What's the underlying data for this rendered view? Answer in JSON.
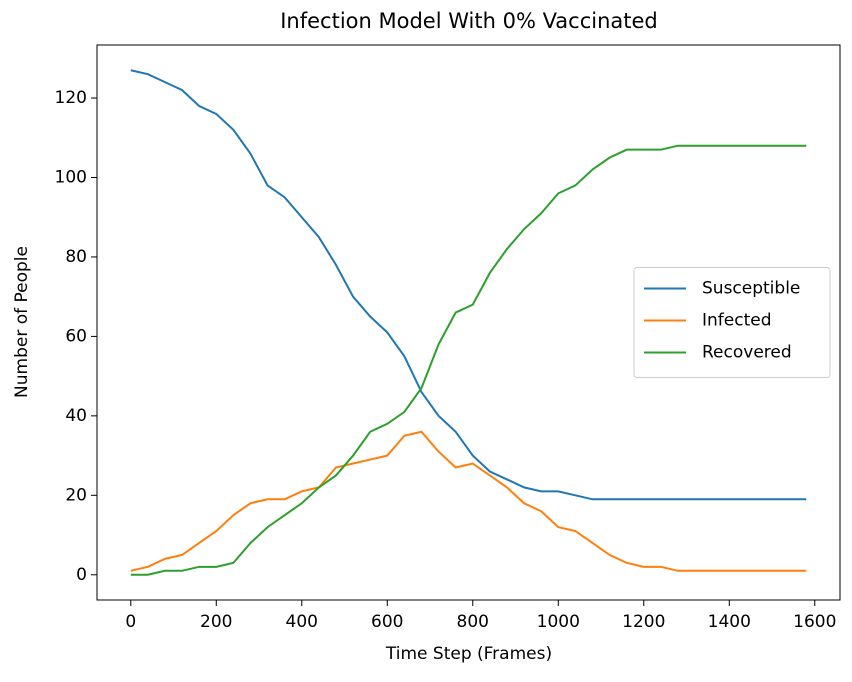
{
  "chart_data": {
    "type": "line",
    "title": "Infection Model With 0% Vaccinated",
    "xlabel": "Time Step (Frames)",
    "ylabel": "Number of People",
    "x": [
      0,
      40,
      80,
      120,
      160,
      200,
      240,
      280,
      320,
      360,
      400,
      440,
      480,
      520,
      560,
      600,
      640,
      680,
      720,
      760,
      800,
      840,
      880,
      920,
      960,
      1000,
      1040,
      1080,
      1120,
      1160,
      1200,
      1240,
      1280,
      1320,
      1360,
      1400,
      1440,
      1480,
      1520,
      1560,
      1580
    ],
    "series": [
      {
        "name": "Susceptible",
        "color": "#1f77b4",
        "values": [
          127,
          126,
          124,
          122,
          118,
          116,
          112,
          106,
          98,
          95,
          90,
          85,
          78,
          70,
          65,
          61,
          55,
          46,
          40,
          36,
          30,
          26,
          24,
          22,
          21,
          21,
          20,
          19,
          19,
          19,
          19,
          19,
          19,
          19,
          19,
          19,
          19,
          19,
          19,
          19,
          19
        ]
      },
      {
        "name": "Infected",
        "color": "#ff7f0e",
        "values": [
          1,
          2,
          4,
          5,
          8,
          11,
          15,
          18,
          19,
          19,
          21,
          22,
          27,
          28,
          29,
          30,
          35,
          36,
          31,
          27,
          28,
          25,
          22,
          18,
          16,
          12,
          11,
          8,
          5,
          3,
          2,
          2,
          1,
          1,
          1,
          1,
          1,
          1,
          1,
          1,
          1
        ]
      },
      {
        "name": "Recovered",
        "color": "#2ca02c",
        "values": [
          0,
          0,
          1,
          1,
          2,
          2,
          3,
          8,
          12,
          15,
          18,
          22,
          25,
          30,
          36,
          38,
          41,
          47,
          58,
          66,
          68,
          76,
          82,
          87,
          91,
          96,
          98,
          102,
          105,
          107,
          107,
          107,
          108,
          108,
          108,
          108,
          108,
          108,
          108,
          108,
          108
        ]
      }
    ],
    "xlim": [
      -79,
      1659
    ],
    "ylim": [
      -6.35,
      133.35
    ],
    "xticks": [
      0,
      200,
      400,
      600,
      800,
      1000,
      1200,
      1400,
      1600
    ],
    "yticks": [
      0,
      20,
      40,
      60,
      80,
      100,
      120
    ],
    "legend": "center right"
  }
}
